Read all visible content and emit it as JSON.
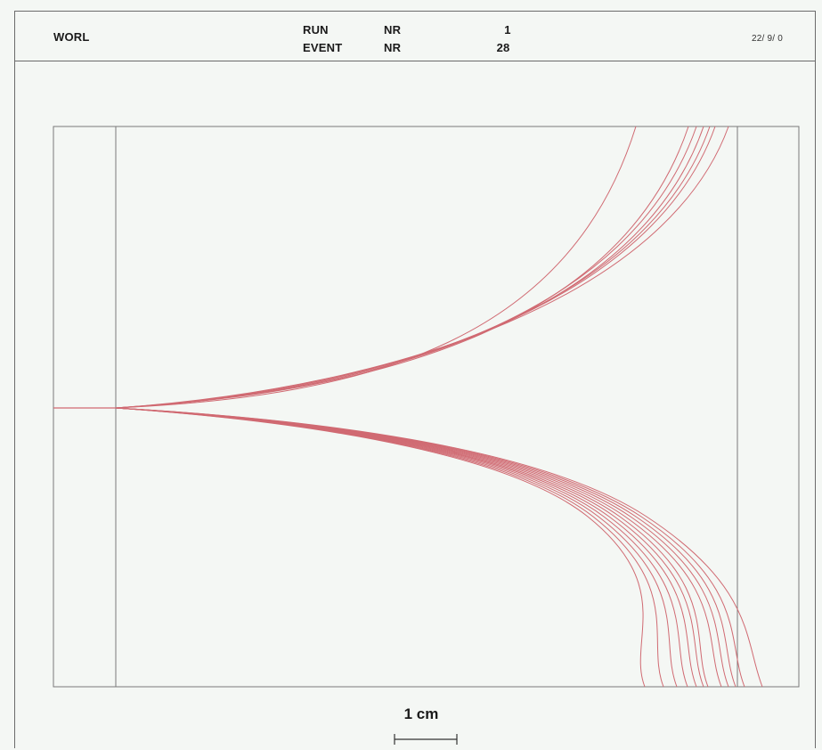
{
  "header": {
    "volume_name": "WORL",
    "run_label": "RUN",
    "event_label": "EVENT",
    "nr_label_run": "NR",
    "nr_label_event": "NR",
    "run_number": "1",
    "event_number": "28",
    "date": "22/ 9/ 0"
  },
  "scale": {
    "label": "1 cm"
  },
  "colors": {
    "track": "#d06a72",
    "outline": "#7a7a7a",
    "background": "#f4f7f4"
  },
  "tracks": {
    "upper_count": 7,
    "lower_count": 12
  }
}
